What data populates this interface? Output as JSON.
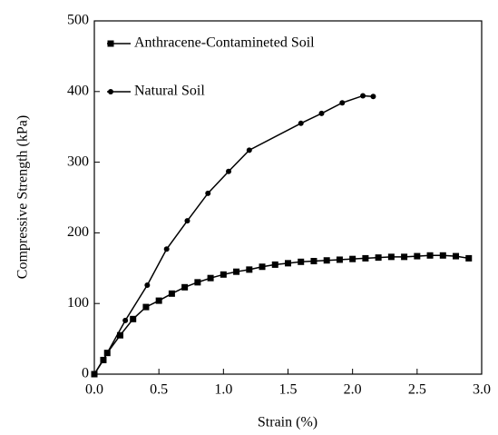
{
  "chart_data": {
    "type": "line",
    "x_label": "Strain (%)",
    "y_label": "Compressive Strength (kPa)",
    "xlim": [
      0,
      3
    ],
    "ylim": [
      0,
      500
    ],
    "xticks": [
      {
        "value": 0,
        "label": "0.0"
      },
      {
        "value": 0.5,
        "label": "0.5"
      },
      {
        "value": 1,
        "label": "1.0"
      },
      {
        "value": 1.5,
        "label": "1.5"
      },
      {
        "value": 2,
        "label": "2.0"
      },
      {
        "value": 2.5,
        "label": "2.5"
      },
      {
        "value": 3,
        "label": "3.0"
      }
    ],
    "yticks": [
      0,
      100,
      200,
      300,
      400,
      500
    ],
    "legend": "upper left",
    "series": [
      {
        "name": "Anthracene-Contamineted Soil",
        "color": "#000000",
        "marker": "square",
        "x": [
          0,
          0.07,
          0.1,
          0.2,
          0.3,
          0.4,
          0.5,
          0.6,
          0.7,
          0.8,
          0.9,
          1.0,
          1.1,
          1.2,
          1.3,
          1.4,
          1.5,
          1.6,
          1.7,
          1.8,
          1.9,
          2.0,
          2.1,
          2.2,
          2.3,
          2.4,
          2.5,
          2.6,
          2.7,
          2.8,
          2.9
        ],
        "values": [
          0,
          20,
          30,
          55,
          78,
          95,
          104,
          114,
          123,
          130,
          136,
          141,
          145,
          148,
          152,
          155,
          157,
          159,
          160,
          161,
          162,
          163,
          164,
          165,
          166,
          166,
          167,
          168,
          168,
          167,
          164
        ]
      },
      {
        "name": "Natural Soil",
        "color": "#000000",
        "marker": "circle",
        "x": [
          0,
          0.1,
          0.24,
          0.41,
          0.56,
          0.72,
          0.88,
          1.04,
          1.2,
          1.6,
          1.76,
          1.92,
          2.08,
          2.16
        ],
        "values": [
          0,
          30,
          76,
          126,
          177,
          217,
          256,
          287,
          317,
          355,
          369,
          384,
          394,
          393
        ]
      }
    ]
  }
}
